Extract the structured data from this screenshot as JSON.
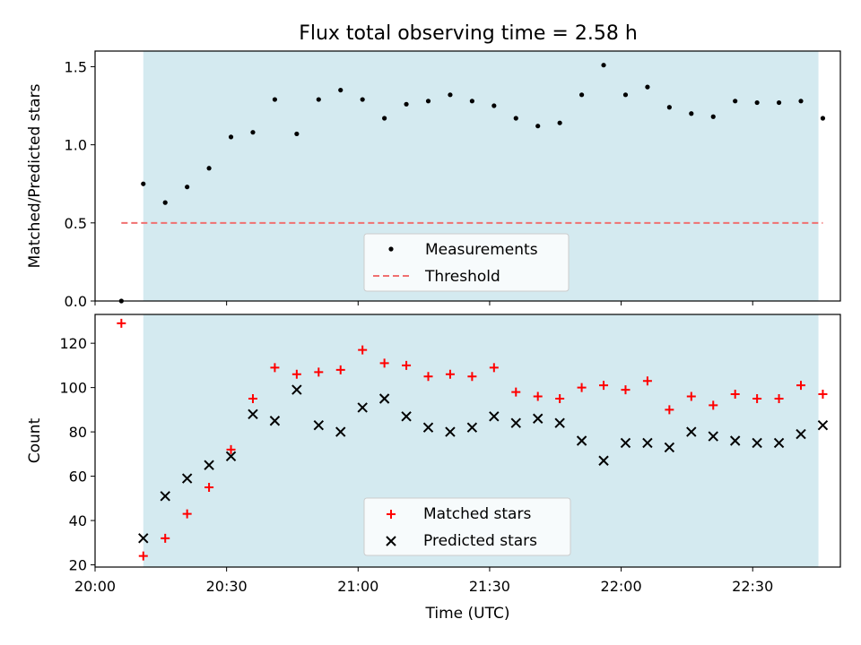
{
  "chart_data": [
    {
      "type": "scatter",
      "title": "Flux total observing time = 2.58 h",
      "ylabel": "Matched/Predicted stars",
      "xlabel": "",
      "xlim": [
        "20:00",
        "22:50"
      ],
      "ylim": [
        0,
        1.6
      ],
      "yticks": [
        "0.0",
        "0.5",
        "1.0",
        "1.5"
      ],
      "shaded_span": [
        "20:11",
        "22:45"
      ],
      "shade_color": "#d4eaf0",
      "legend_position": "lower center",
      "series": [
        {
          "name": "Measurements",
          "marker": "dot",
          "color": "#000000",
          "x": [
            "20:06",
            "20:11",
            "20:16",
            "20:21",
            "20:26",
            "20:31",
            "20:36",
            "20:41",
            "20:46",
            "20:51",
            "20:56",
            "21:01",
            "21:06",
            "21:11",
            "21:16",
            "21:21",
            "21:26",
            "21:31",
            "21:36",
            "21:41",
            "21:46",
            "21:51",
            "21:56",
            "22:01",
            "22:06",
            "22:11",
            "22:16",
            "22:21",
            "22:26",
            "22:31",
            "22:36",
            "22:41",
            "22:46"
          ],
          "y": [
            0.0,
            0.75,
            0.63,
            0.73,
            0.85,
            1.05,
            1.08,
            1.29,
            1.07,
            1.29,
            1.35,
            1.29,
            1.17,
            1.26,
            1.28,
            1.32,
            1.28,
            1.25,
            1.17,
            1.12,
            1.14,
            1.32,
            1.51,
            1.32,
            1.37,
            1.24,
            1.2,
            1.18,
            1.28,
            1.27,
            1.27,
            1.28,
            1.17
          ]
        },
        {
          "name": "Threshold",
          "style": "dashed",
          "color": "#f07070",
          "x": [
            "20:06",
            "22:46"
          ],
          "y": [
            0.5,
            0.5
          ]
        }
      ]
    },
    {
      "type": "scatter",
      "title": "",
      "ylabel": "Count",
      "xlabel": "Time (UTC)",
      "xlim": [
        "20:00",
        "22:50"
      ],
      "ylim": [
        19,
        133
      ],
      "yticks": [
        "20",
        "40",
        "60",
        "80",
        "100",
        "120"
      ],
      "xticks": [
        "20:00",
        "20:30",
        "21:00",
        "21:30",
        "22:00",
        "22:30"
      ],
      "shaded_span": [
        "20:11",
        "22:45"
      ],
      "shade_color": "#d4eaf0",
      "legend_position": "lower center",
      "series": [
        {
          "name": "Matched stars",
          "marker": "plus",
          "color": "#ff0000",
          "x": [
            "20:06",
            "20:11",
            "20:16",
            "20:21",
            "20:26",
            "20:31",
            "20:36",
            "20:41",
            "20:46",
            "20:51",
            "20:56",
            "21:01",
            "21:06",
            "21:11",
            "21:16",
            "21:21",
            "21:26",
            "21:31",
            "21:36",
            "21:41",
            "21:46",
            "21:51",
            "21:56",
            "22:01",
            "22:06",
            "22:11",
            "22:16",
            "22:21",
            "22:26",
            "22:31",
            "22:36",
            "22:41",
            "22:46"
          ],
          "y": [
            129,
            24,
            32,
            43,
            55,
            72,
            95,
            109,
            106,
            107,
            108,
            117,
            111,
            110,
            105,
            106,
            105,
            109,
            98,
            96,
            95,
            100,
            101,
            99,
            103,
            90,
            96,
            92,
            97,
            95,
            95,
            101,
            97
          ]
        },
        {
          "name": "Predicted stars",
          "marker": "x",
          "color": "#000000",
          "x": [
            "20:11",
            "20:16",
            "20:21",
            "20:26",
            "20:31",
            "20:36",
            "20:41",
            "20:46",
            "20:51",
            "20:56",
            "21:01",
            "21:06",
            "21:11",
            "21:16",
            "21:21",
            "21:26",
            "21:31",
            "21:36",
            "21:41",
            "21:46",
            "21:51",
            "21:56",
            "22:01",
            "22:06",
            "22:11",
            "22:16",
            "22:21",
            "22:26",
            "22:31",
            "22:36",
            "22:41",
            "22:46"
          ],
          "y": [
            32,
            51,
            59,
            65,
            69,
            88,
            85,
            99,
            83,
            80,
            91,
            95,
            87,
            82,
            80,
            82,
            87,
            84,
            86,
            84,
            76,
            67,
            75,
            75,
            73,
            80,
            78,
            76,
            75,
            75,
            79,
            83
          ]
        }
      ]
    }
  ]
}
